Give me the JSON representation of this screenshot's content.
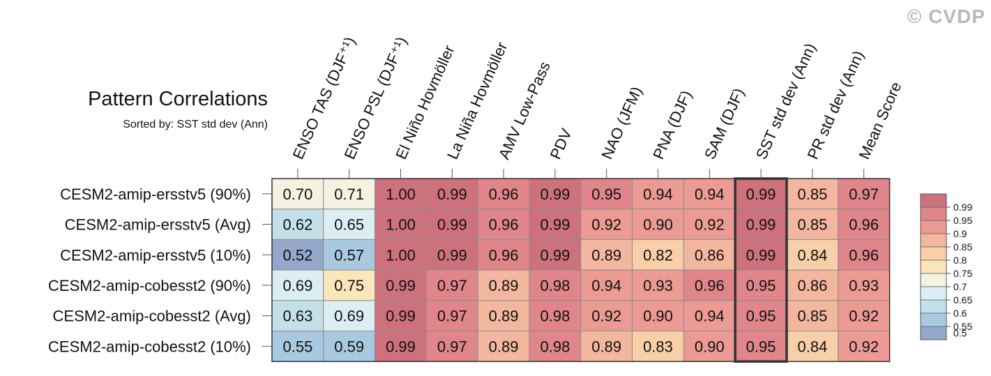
{
  "header": {
    "title": "Pattern Correlations",
    "subtitle": "Sorted by: SST std dev (Ann)",
    "watermark": "© CVDP"
  },
  "chart_data": {
    "type": "heatmap",
    "columns": [
      "ENSO TAS (DJF⁺¹)",
      "ENSO PSL (DJF⁺¹)",
      "El Niño Hovmöller",
      "La Niña Hovmöller",
      "AMV Low-Pass",
      "PDV",
      "NAO (JFM)",
      "PNA (DJF)",
      "SAM (DJF)",
      "SST std dev (Ann)",
      "PR std dev (Ann)",
      "Mean Score"
    ],
    "rows": [
      "CESM2-amip-ersstv5 (90%)",
      "CESM2-amip-ersstv5 (Avg)",
      "CESM2-amip-ersstv5 (10%)",
      "CESM2-amip-cobesst2 (90%)",
      "CESM2-amip-cobesst2 (Avg)",
      "CESM2-amip-cobesst2 (10%)"
    ],
    "values": [
      [
        "0.70",
        "0.71",
        "1.00",
        "0.99",
        "0.96",
        "0.99",
        "0.95",
        "0.94",
        "0.94",
        "0.99",
        "0.85",
        "0.97"
      ],
      [
        "0.62",
        "0.65",
        "1.00",
        "0.99",
        "0.96",
        "0.99",
        "0.92",
        "0.90",
        "0.92",
        "0.99",
        "0.85",
        "0.96"
      ],
      [
        "0.52",
        "0.57",
        "1.00",
        "0.99",
        "0.96",
        "0.99",
        "0.89",
        "0.82",
        "0.86",
        "0.99",
        "0.84",
        "0.96"
      ],
      [
        "0.69",
        "0.75",
        "0.99",
        "0.97",
        "0.89",
        "0.98",
        "0.94",
        "0.93",
        "0.96",
        "0.95",
        "0.86",
        "0.93"
      ],
      [
        "0.63",
        "0.69",
        "0.99",
        "0.97",
        "0.89",
        "0.98",
        "0.92",
        "0.90",
        "0.94",
        "0.95",
        "0.85",
        "0.92"
      ],
      [
        "0.55",
        "0.59",
        "0.99",
        "0.97",
        "0.89",
        "0.98",
        "0.89",
        "0.83",
        "0.90",
        "0.95",
        "0.84",
        "0.92"
      ]
    ],
    "sorted_by": "SST std dev (Ann)",
    "highlighted_column": "SST std dev (Ann)",
    "colorbar": {
      "levels": [
        "0.99",
        "0.95",
        "0.9",
        "0.85",
        "0.8",
        "0.75",
        "0.7",
        "0.65",
        "0.6",
        "0.55",
        "0.5"
      ],
      "colors": [
        "#cd717c",
        "#e0858a",
        "#eb9b93",
        "#f3b69e",
        "#f8cfa8",
        "#fbe6bc",
        "#f5f2e2",
        "#dceef3",
        "#c3dfea",
        "#a9c9e1",
        "#93a8cc"
      ],
      "placement": "right"
    }
  }
}
